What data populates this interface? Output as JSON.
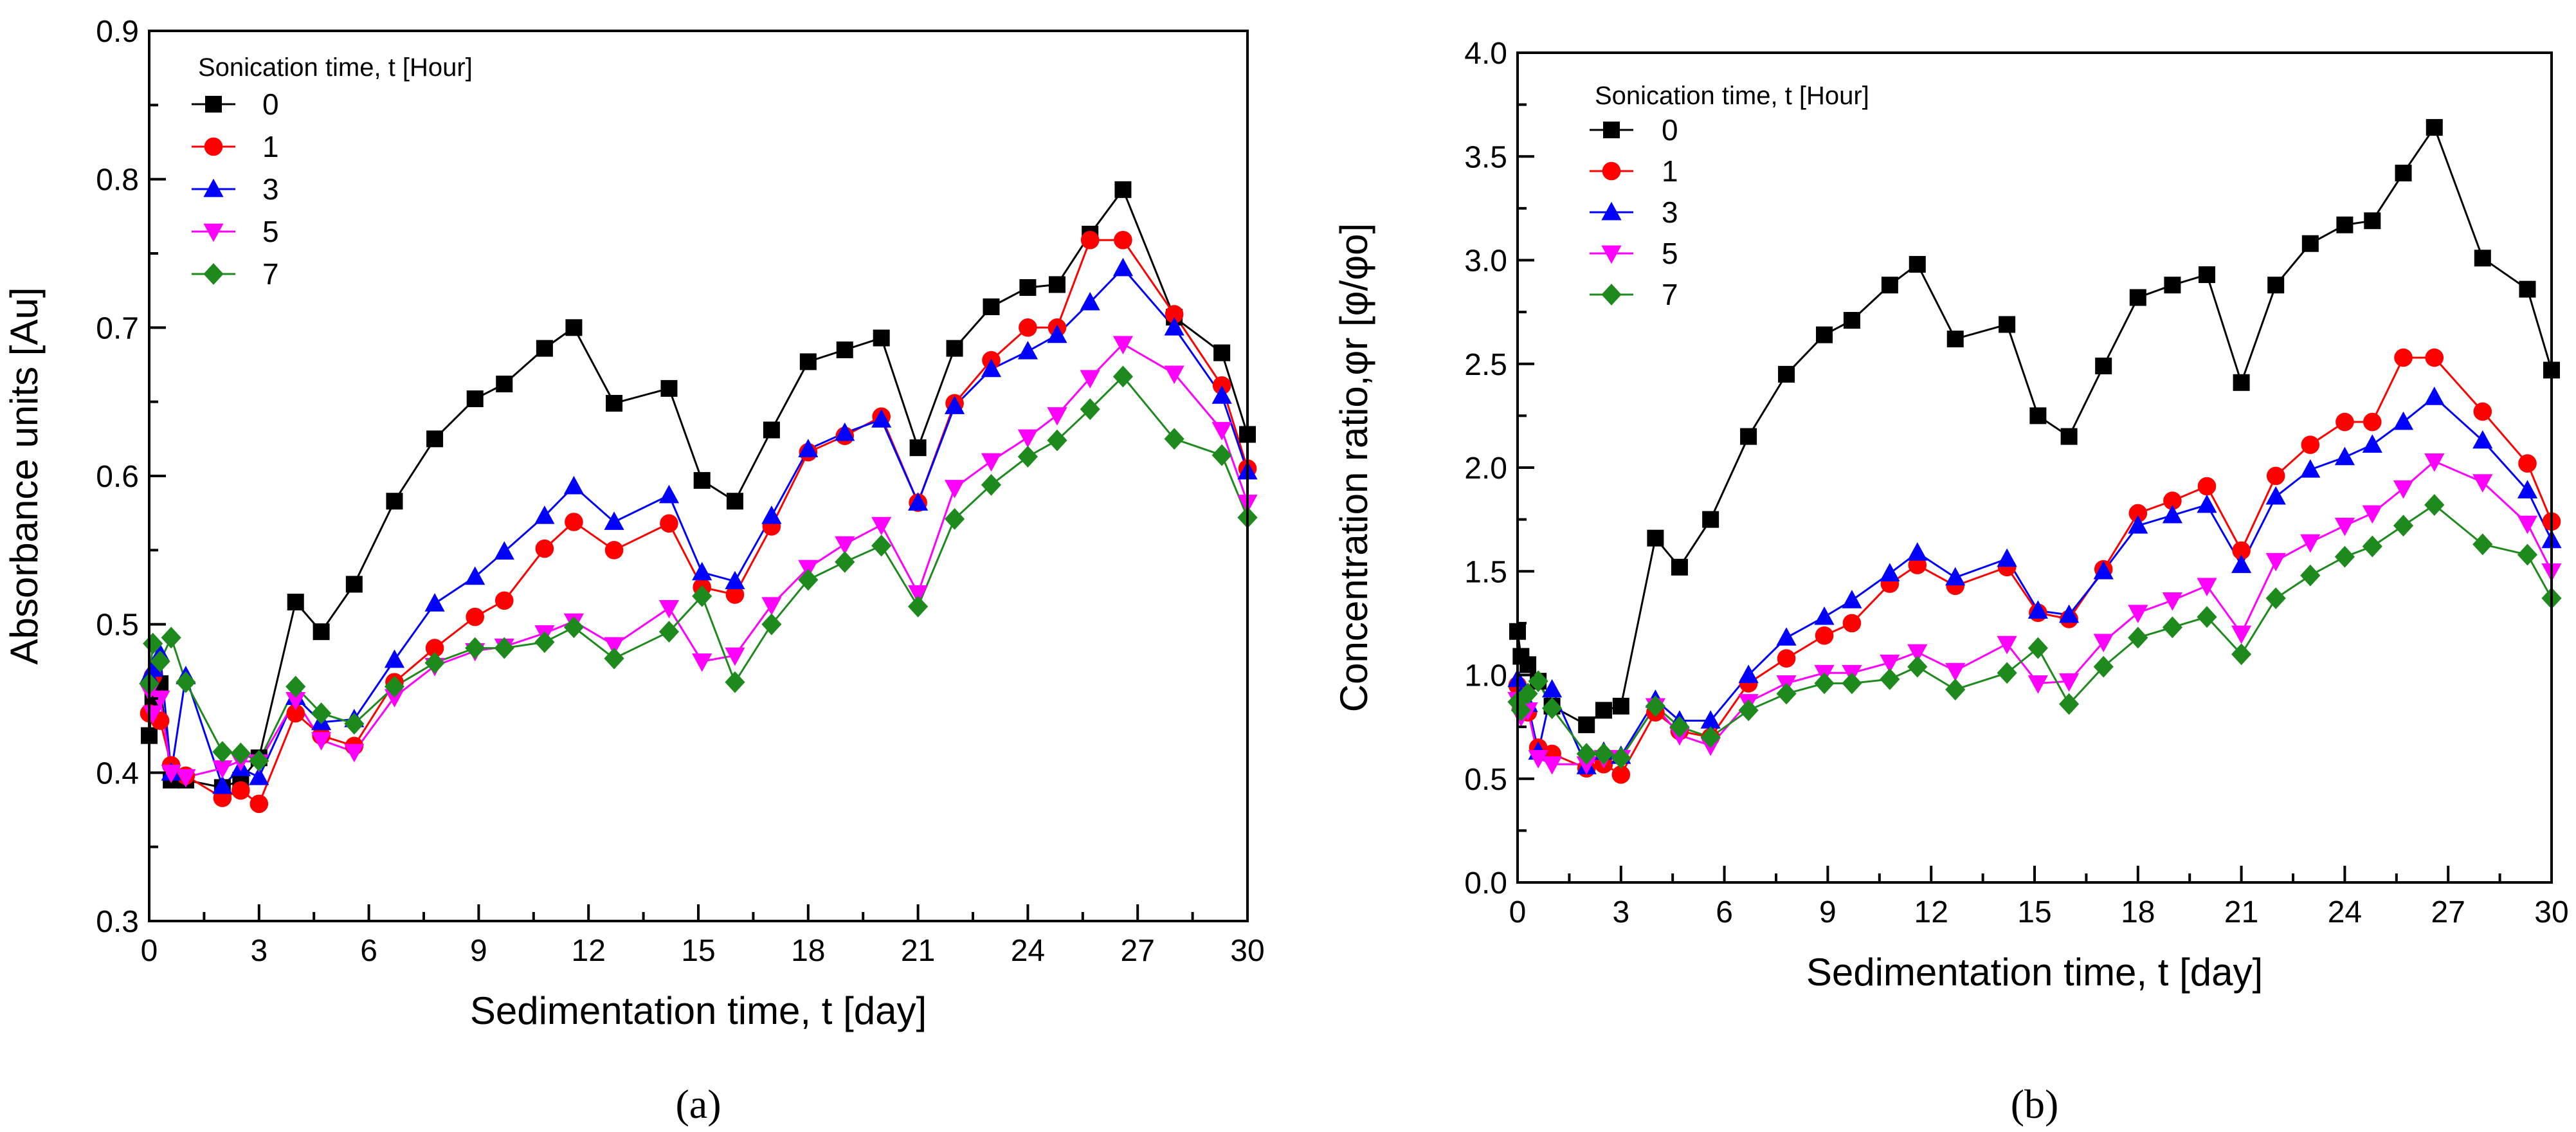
{
  "chart_data": [
    {
      "type": "line",
      "panel_label": "(a)",
      "xlabel": "Sedimentation time, t [day]",
      "ylabel": "Absorbance units [Au]",
      "xlim": [
        0,
        30
      ],
      "ylim": [
        0.3,
        0.9
      ],
      "xticks": [
        "0",
        "3",
        "6",
        "9",
        "12",
        "15",
        "18",
        "21",
        "24",
        "27",
        "30"
      ],
      "yticks": [
        "0.3",
        "0.4",
        "0.5",
        "0.6",
        "0.7",
        "0.8",
        "0.9"
      ],
      "legend_title": "Sonication time, t [Hour]",
      "x": [
        0,
        0.1,
        0.3,
        0.6,
        1,
        2,
        2.5,
        3,
        4,
        4.7,
        5.6,
        6.7,
        7.8,
        8.9,
        9.7,
        10.8,
        11.6,
        12.7,
        14.2,
        15.1,
        16,
        17,
        18,
        19,
        20,
        21,
        22,
        23,
        24,
        24.8,
        25.7,
        26.6,
        28,
        29.3,
        30
      ],
      "series": [
        {
          "name": "0",
          "color": "#000000",
          "marker": "square",
          "values": [
            0.425,
            0.45,
            0.46,
            0.395,
            0.395,
            0.39,
            0.395,
            0.41,
            0.515,
            0.495,
            0.527,
            0.583,
            0.625,
            0.652,
            0.662,
            0.686,
            0.7,
            0.649,
            0.659,
            0.597,
            0.583,
            0.631,
            0.677,
            0.685,
            0.693,
            0.619,
            0.686,
            0.714,
            0.727,
            0.729,
            0.763,
            0.793,
            0.707,
            0.683,
            0.628
          ]
        },
        {
          "name": "1",
          "color": "#ff0000",
          "marker": "circle",
          "values": [
            0.44,
            0.465,
            0.435,
            0.405,
            0.398,
            0.383,
            0.388,
            0.379,
            0.44,
            0.425,
            0.418,
            0.461,
            0.484,
            0.505,
            0.516,
            0.551,
            0.569,
            0.55,
            0.568,
            0.525,
            0.52,
            0.566,
            0.616,
            0.627,
            0.64,
            0.582,
            0.649,
            0.678,
            0.7,
            0.7,
            0.759,
            0.759,
            0.709,
            0.661,
            0.605
          ]
        },
        {
          "name": "3",
          "color": "#0000ff",
          "marker": "triangle-up",
          "values": [
            0.465,
            0.47,
            0.48,
            0.4,
            0.465,
            0.391,
            0.403,
            0.397,
            0.451,
            0.434,
            0.436,
            0.476,
            0.514,
            0.532,
            0.549,
            0.573,
            0.593,
            0.569,
            0.587,
            0.535,
            0.529,
            0.573,
            0.618,
            0.629,
            0.638,
            0.582,
            0.647,
            0.672,
            0.684,
            0.695,
            0.717,
            0.74,
            0.7,
            0.654,
            0.603
          ]
        },
        {
          "name": "5",
          "color": "#ff00ff",
          "marker": "triangle-down",
          "values": [
            0.455,
            0.44,
            0.45,
            0.4,
            0.397,
            0.403,
            0.408,
            0.407,
            0.449,
            0.422,
            0.414,
            0.451,
            0.472,
            0.482,
            0.485,
            0.494,
            0.502,
            0.486,
            0.511,
            0.475,
            0.479,
            0.513,
            0.538,
            0.554,
            0.567,
            0.521,
            0.592,
            0.61,
            0.626,
            0.641,
            0.666,
            0.689,
            0.669,
            0.631,
            0.582
          ]
        },
        {
          "name": "7",
          "color": "#1e8a1e",
          "marker": "diamond",
          "values": [
            0.46,
            0.487,
            0.475,
            0.491,
            0.461,
            0.414,
            0.413,
            0.408,
            0.458,
            0.44,
            0.433,
            0.458,
            0.474,
            0.484,
            0.484,
            0.488,
            0.498,
            0.477,
            0.495,
            0.519,
            0.461,
            0.5,
            0.53,
            0.542,
            0.553,
            0.512,
            0.571,
            0.594,
            0.613,
            0.624,
            0.645,
            0.667,
            0.625,
            0.614,
            0.572
          ]
        }
      ]
    },
    {
      "type": "line",
      "panel_label": "(b)",
      "xlabel": "Sedimentation time, t [day]",
      "ylabel": "Concentration ratio,φr [φ/φo]",
      "xlim": [
        0,
        30
      ],
      "ylim": [
        0.0,
        4.0
      ],
      "xticks": [
        "0",
        "3",
        "6",
        "9",
        "12",
        "15",
        "18",
        "21",
        "24",
        "27",
        "30"
      ],
      "yticks": [
        "0.0",
        "0.5",
        "1.0",
        "1.5",
        "2.0",
        "2.5",
        "3.0",
        "3.5",
        "4.0"
      ],
      "legend_title": "Sonication time, t [Hour]",
      "x": [
        0,
        0.1,
        0.3,
        0.6,
        1,
        2,
        2.5,
        3,
        4,
        4.7,
        5.6,
        6.7,
        7.8,
        8.9,
        9.7,
        10.8,
        11.6,
        12.7,
        14.2,
        15.1,
        16,
        17,
        18,
        19,
        20,
        21,
        22,
        23,
        24,
        24.8,
        25.7,
        26.6,
        28,
        29.3,
        30
      ],
      "series": [
        {
          "name": "0",
          "color": "#000000",
          "marker": "square",
          "values": [
            1.21,
            1.09,
            1.05,
            0.97,
            0.85,
            0.76,
            0.83,
            0.85,
            1.66,
            1.52,
            1.75,
            2.15,
            2.45,
            2.64,
            2.71,
            2.88,
            2.98,
            2.62,
            2.69,
            2.25,
            2.15,
            2.49,
            2.82,
            2.88,
            2.93,
            2.41,
            2.88,
            3.08,
            3.17,
            3.19,
            3.42,
            3.64,
            3.01,
            2.86,
            2.47
          ]
        },
        {
          "name": "1",
          "color": "#ff0000",
          "marker": "circle",
          "values": [
            0.95,
            0.85,
            0.82,
            0.65,
            0.62,
            0.55,
            0.57,
            0.52,
            0.82,
            0.73,
            0.7,
            0.96,
            1.08,
            1.19,
            1.25,
            1.44,
            1.53,
            1.43,
            1.52,
            1.3,
            1.27,
            1.51,
            1.78,
            1.84,
            1.91,
            1.6,
            1.96,
            2.11,
            2.22,
            2.22,
            2.53,
            2.53,
            2.27,
            2.02,
            1.74
          ]
        },
        {
          "name": "3",
          "color": "#0000ff",
          "marker": "triangle-up",
          "values": [
            0.98,
            0.9,
            0.86,
            0.63,
            0.93,
            0.56,
            0.63,
            0.61,
            0.88,
            0.78,
            0.78,
            1.0,
            1.18,
            1.28,
            1.36,
            1.49,
            1.59,
            1.47,
            1.56,
            1.31,
            1.29,
            1.5,
            1.72,
            1.77,
            1.82,
            1.53,
            1.86,
            1.99,
            2.05,
            2.11,
            2.22,
            2.34,
            2.13,
            1.89,
            1.65
          ]
        },
        {
          "name": "5",
          "color": "#ff00ff",
          "marker": "triangle-down",
          "values": [
            0.88,
            0.8,
            0.83,
            0.6,
            0.57,
            0.57,
            0.6,
            0.6,
            0.85,
            0.71,
            0.66,
            0.87,
            0.96,
            1.01,
            1.01,
            1.06,
            1.11,
            1.02,
            1.15,
            0.96,
            0.97,
            1.16,
            1.3,
            1.36,
            1.43,
            1.2,
            1.55,
            1.64,
            1.72,
            1.78,
            1.9,
            2.03,
            1.93,
            1.73,
            1.5
          ]
        },
        {
          "name": "7",
          "color": "#1e8a1e",
          "marker": "diamond",
          "values": [
            0.87,
            0.83,
            0.91,
            0.97,
            0.84,
            0.62,
            0.62,
            0.6,
            0.85,
            0.75,
            0.7,
            0.83,
            0.91,
            0.96,
            0.96,
            0.98,
            1.04,
            0.93,
            1.01,
            1.13,
            0.86,
            1.04,
            1.18,
            1.23,
            1.28,
            1.1,
            1.37,
            1.48,
            1.57,
            1.62,
            1.72,
            1.82,
            1.63,
            1.58,
            1.37
          ]
        }
      ]
    }
  ]
}
